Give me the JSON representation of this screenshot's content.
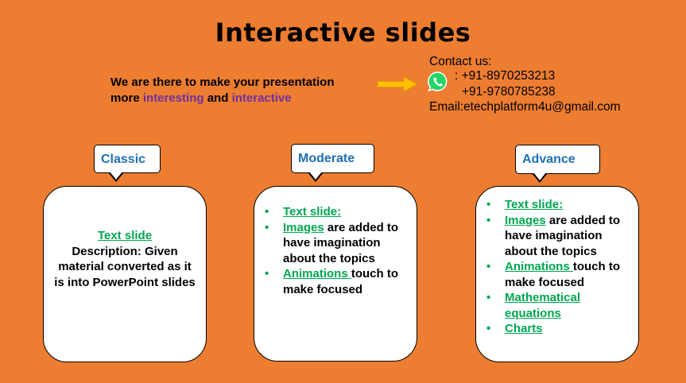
{
  "title": "Interactive slides",
  "tagline": {
    "line1": "We are there to make your presentation",
    "line2_pre": "more ",
    "word1": "interesting",
    "mid": " and ",
    "word2": "interactive"
  },
  "contact": {
    "heading": "Contact us:",
    "phone1": ": +91-8970253213",
    "phone2": "+91-9780785238",
    "email": "Email:etechplatform4u@gmail.com",
    "icon": "whatsapp-icon"
  },
  "colors": {
    "background": "#ED7D31",
    "heading_blue": "#1F6FB5",
    "link_green": "#00A651",
    "accent_purple": "#7030A0",
    "arrow_yellow": "#FFC000"
  },
  "plans": [
    {
      "name": "Classic",
      "text_slide": "Text slide",
      "description": "Description: Given material converted as it is into PowerPoint slides"
    },
    {
      "name": "Moderate",
      "items": [
        {
          "link": "Text slide:",
          "rest": ""
        },
        {
          "link": "Images",
          "rest": " are added to have imagination about the topics"
        },
        {
          "link": "Animations ",
          "rest": "touch to make focused"
        }
      ]
    },
    {
      "name": "Advance",
      "items": [
        {
          "link": "Text slide:",
          "rest": ""
        },
        {
          "link": "Images",
          "rest": " are added to have imagination about the topics"
        },
        {
          "link": "Animations ",
          "rest": "touch to make focused"
        },
        {
          "link": "Mathematical equations",
          "rest": ""
        },
        {
          "link": "Charts",
          "rest": ""
        }
      ]
    }
  ]
}
